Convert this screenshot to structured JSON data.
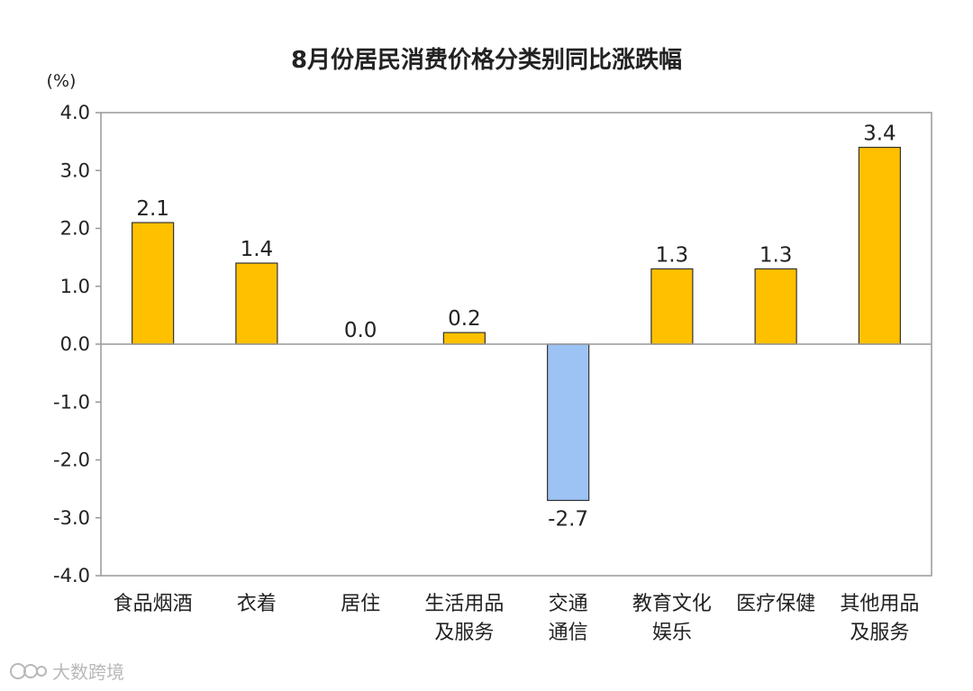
{
  "chart_data": {
    "type": "bar",
    "title": "8月份居民消费价格分类别同比涨跌幅",
    "unit_label": "(%)",
    "ylim": [
      -4.0,
      4.0
    ],
    "yticks": [
      "4.0",
      "3.0",
      "2.0",
      "1.0",
      "0.0",
      "-1.0",
      "-2.0",
      "-3.0",
      "-4.0"
    ],
    "categories": [
      [
        "食品烟酒"
      ],
      [
        "衣着"
      ],
      [
        "居住"
      ],
      [
        "生活用品",
        "及服务"
      ],
      [
        "交通",
        "通信"
      ],
      [
        "教育文化",
        "娱乐"
      ],
      [
        "医疗保健"
      ],
      [
        "其他用品",
        "及服务"
      ]
    ],
    "values": [
      2.1,
      1.4,
      0.0,
      0.2,
      -2.7,
      1.3,
      1.3,
      3.4
    ],
    "value_labels": [
      "2.1",
      "1.4",
      "0.0",
      "0.2",
      "-2.7",
      "1.3",
      "1.3",
      "3.4"
    ],
    "colors": {
      "positive": "#FFC000",
      "negative": "#9DC3F5",
      "bar_border": "#333333",
      "axis": "#999999"
    }
  },
  "watermark": {
    "text": "大数跨境"
  }
}
